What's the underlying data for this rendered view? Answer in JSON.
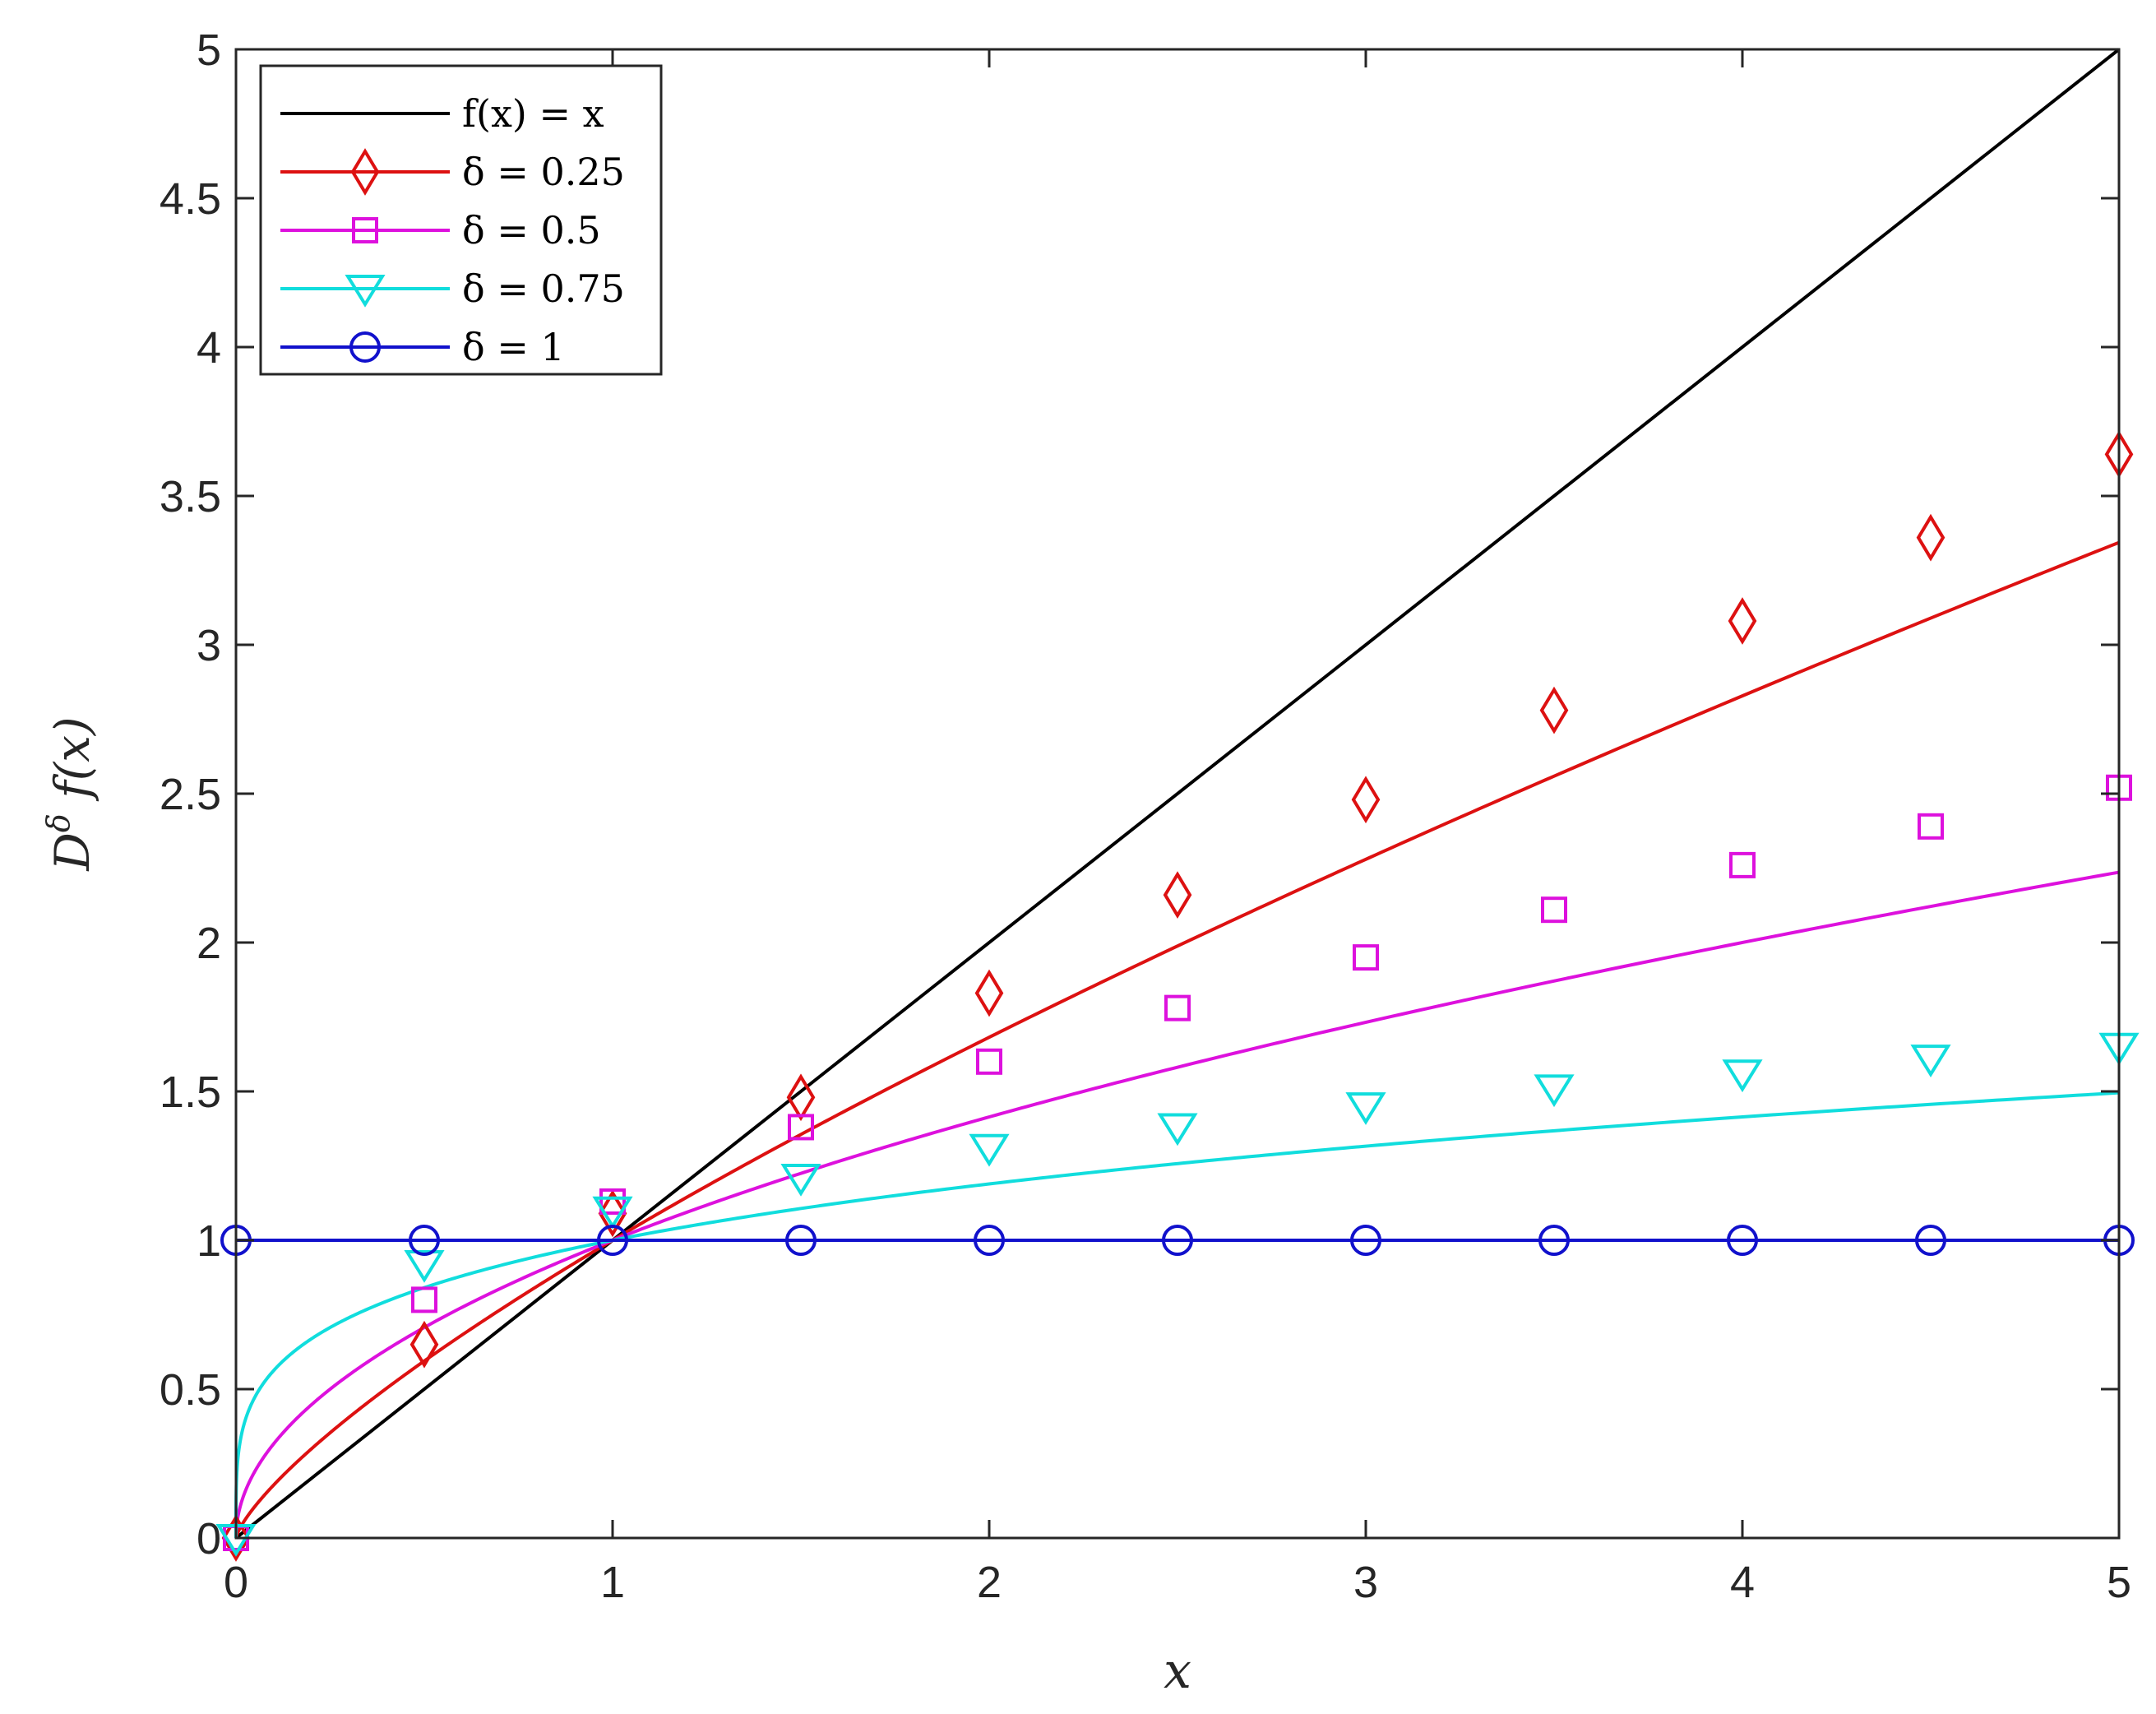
{
  "chart_data": {
    "type": "line",
    "title": "",
    "xlabel": "x",
    "ylabel": "D^δ f(x)",
    "xlim": [
      0,
      5
    ],
    "ylim": [
      0,
      5
    ],
    "xticks": [
      "0",
      "1",
      "2",
      "3",
      "4",
      "5"
    ],
    "yticks": [
      "0",
      "0.5",
      "1",
      "1.5",
      "2",
      "2.5",
      "3",
      "3.5",
      "4",
      "4.5",
      "5"
    ],
    "grid": false,
    "legend_position": "top-left",
    "series": [
      {
        "name": "f(x) = x",
        "color": "#000000",
        "marker": "none",
        "formula": "x",
        "x": [
          0,
          5
        ],
        "y": [
          0,
          5
        ]
      },
      {
        "name": "δ = 0.25",
        "color": "#dd1111",
        "marker": "diamond",
        "delta": 0.25,
        "x": [
          0,
          0.5,
          1,
          1.5,
          2,
          2.5,
          3,
          3.5,
          4,
          4.5,
          5
        ],
        "y": [
          0,
          0.65,
          1.09,
          1.48,
          1.83,
          2.16,
          2.48,
          2.78,
          3.08,
          3.36,
          3.64
        ]
      },
      {
        "name": "δ = 0.5",
        "color": "#dd11dd",
        "marker": "square",
        "delta": 0.5,
        "x": [
          0,
          0.5,
          1,
          1.5,
          2,
          2.5,
          3,
          3.5,
          4,
          4.5,
          5
        ],
        "y": [
          0,
          0.8,
          1.13,
          1.38,
          1.6,
          1.78,
          1.95,
          2.11,
          2.26,
          2.39,
          2.52
        ]
      },
      {
        "name": "δ = 0.75",
        "color": "#11dddd",
        "marker": "triangle-down",
        "delta": 0.75,
        "x": [
          0,
          0.5,
          1,
          1.5,
          2,
          2.5,
          3,
          3.5,
          4,
          4.5,
          5
        ],
        "y": [
          0,
          0.92,
          1.1,
          1.21,
          1.31,
          1.38,
          1.45,
          1.51,
          1.56,
          1.61,
          1.65
        ]
      },
      {
        "name": "δ = 1",
        "color": "#1111cc",
        "marker": "circle",
        "delta": 1,
        "x": [
          0,
          0.5,
          1,
          1.5,
          2,
          2.5,
          3,
          3.5,
          4,
          4.5,
          5
        ],
        "y": [
          1,
          1,
          1,
          1,
          1,
          1,
          1,
          1,
          1,
          1,
          1
        ]
      }
    ]
  }
}
